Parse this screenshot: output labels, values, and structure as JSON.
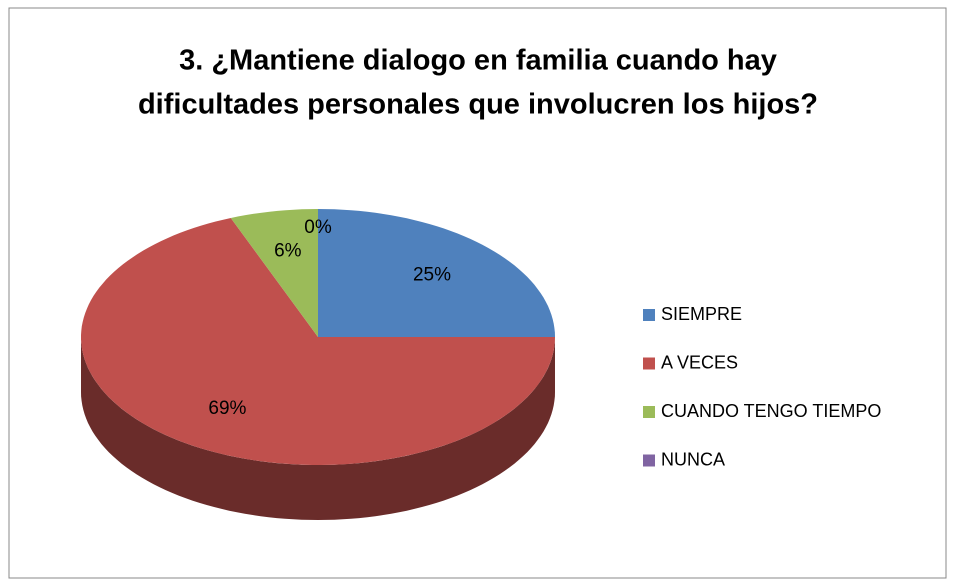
{
  "chart_data": {
    "type": "pie",
    "title": [
      "3. ¿Mantiene dialogo en  familia cuando hay",
      "dificultades personales que involucren los hijos?"
    ],
    "categories": [
      "SIEMPRE",
      "A VECES",
      "CUANDO TENGO TIEMPO",
      "NUNCA"
    ],
    "values": [
      25,
      69,
      6,
      0
    ],
    "value_labels": [
      "25%",
      "69%",
      "6%",
      "0%"
    ],
    "colors": [
      "#4f81bd",
      "#c0504d",
      "#9bbb59",
      "#8064a2"
    ],
    "legend": "right"
  }
}
